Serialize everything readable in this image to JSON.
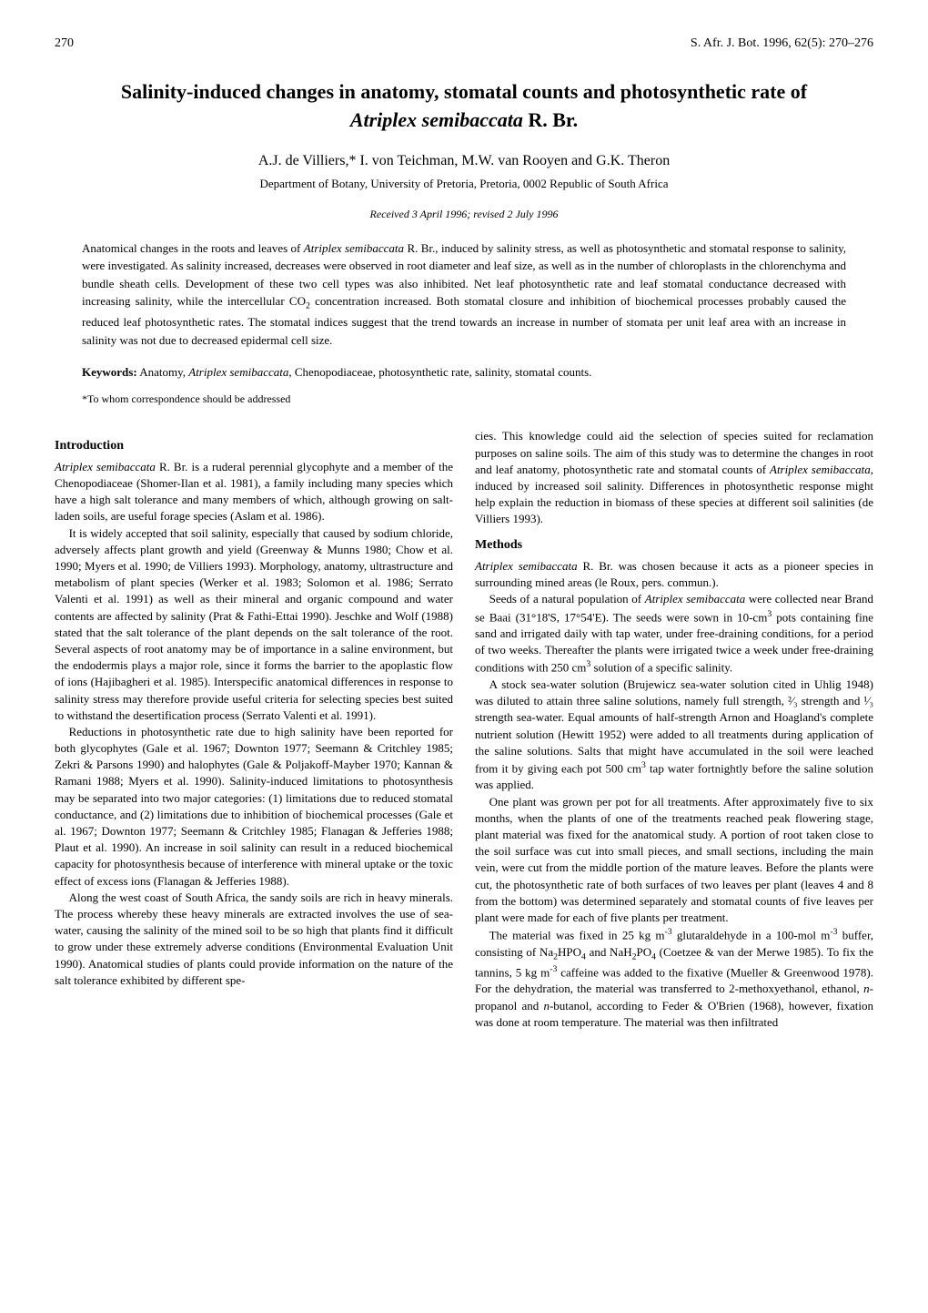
{
  "header": {
    "page_number": "270",
    "journal_ref": "S. Afr. J. Bot. 1996, 62(5): 270–276"
  },
  "title_line1": "Salinity-induced changes in anatomy, stomatal counts and photosynthetic rate of",
  "title_line2_prefix": "",
  "title_species": "Atriplex semibaccata",
  "title_line2_suffix": " R. Br.",
  "authors": "A.J. de Villiers,* I. von Teichman, M.W. van Rooyen and G.K. Theron",
  "affiliation": "Department of Botany, University of Pretoria, Pretoria, 0002 Republic of South Africa",
  "received": "Received 3 April 1996; revised 2 July 1996",
  "abstract": {
    "text_1": "Anatomical changes in the roots and leaves of ",
    "species": "Atriplex semibaccata",
    "text_2": " R. Br., induced by salinity stress, as well as photosynthetic and stomatal response to salinity, were investigated. As salinity increased, decreases were observed in root diameter and leaf size, as well as in the number of chloroplasts in the chlorenchyma and bundle sheath cells. Development of these two cell types was also inhibited. Net leaf photosynthetic rate and leaf stomatal conductance decreased with increasing salinity, while the intercellular CO",
    "sub": "2",
    "text_3": " concentration increased. Both stomatal closure and inhibition of biochemical processes probably caused the reduced leaf photosynthetic rates. The stomatal indices suggest that the trend towards an increase in number of stomata per unit leaf area with an increase in salinity was not due to decreased epidermal cell size."
  },
  "keywords": {
    "label": "Keywords:",
    "text_1": " Anatomy, ",
    "species": "Atriplex semibaccata",
    "text_2": ", Chenopodiaceae, photosynthetic rate, salinity, stomatal counts."
  },
  "correspondence": "*To whom correspondence should be addressed",
  "sections": {
    "introduction": {
      "heading": "Introduction",
      "p1_species": "Atriplex semibaccata",
      "p1_text": " R. Br. is a ruderal perennial glycophyte and a member of the Chenopodiaceae (Shomer-Ilan et al. 1981), a family including many species which have a high salt tolerance and many members of which, although growing on salt-laden soils, are useful forage species (Aslam et al. 1986).",
      "p2": "It is widely accepted that soil salinity, especially that caused by sodium chloride, adversely affects plant growth and yield (Greenway & Munns 1980; Chow et al. 1990; Myers et al. 1990; de Villiers 1993). Morphology, anatomy, ultrastructure and metabolism of plant species (Werker et al. 1983; Solomon et al. 1986; Serrato Valenti et al. 1991) as well as their mineral and organic compound and water contents are affected by salinity (Prat & Fathi-Ettai 1990). Jeschke and Wolf (1988) stated that the salt tolerance of the plant depends on the salt tolerance of the root. Several aspects of root anatomy may be of importance in a saline environment, but the endodermis plays a major role, since it forms the barrier to the apoplastic flow of ions (Hajibagheri et al. 1985). Interspecific anatomical differences in response to salinity stress may therefore provide useful criteria for selecting species best suited to withstand the desertification process (Serrato Valenti et al. 1991).",
      "p3": "Reductions in photosynthetic rate due to high salinity have been reported for both glycophytes (Gale et al. 1967; Downton 1977; Seemann & Critchley 1985; Zekri & Parsons 1990) and halophytes (Gale & Poljakoff-Mayber 1970; Kannan & Ramani 1988; Myers et al. 1990). Salinity-induced limitations to photosynthesis may be separated into two major categories: (1) limitations due to reduced stomatal conductance, and (2) limitations due to inhibition of biochemical processes (Gale et al. 1967; Downton 1977; Seemann & Critchley 1985; Flanagan & Jefferies 1988; Plaut et al. 1990). An increase in soil salinity can result in a reduced biochemical capacity for photosynthesis because of interference with mineral uptake or the toxic effect of excess ions (Flanagan & Jefferies 1988).",
      "p4": "Along the west coast of South Africa, the sandy soils are rich in heavy minerals. The process whereby these heavy minerals are extracted involves the use of sea-water, causing the salinity of the mined soil to be so high that plants find it difficult to grow under these extremely adverse conditions (Environmental Evaluation Unit 1990). Anatomical studies of plants could provide information on the nature of the salt tolerance exhibited by different spe-",
      "p4_cont": "cies. This knowledge could aid the selection of species suited for reclamation purposes on saline soils. The aim of this study was to determine the changes in root and leaf anatomy, photosynthetic rate and stomatal counts of ",
      "p4_species": "Atriplex semibaccata",
      "p4_cont2": ", induced by increased soil salinity. Differences in photosynthetic response might help explain the reduction in biomass of these species at different soil salinities (de Villiers 1993)."
    },
    "methods": {
      "heading": "Methods",
      "p1_species": "Atriplex semibaccata",
      "p1_text": " R. Br. was chosen because it acts as a pioneer species in surrounding mined areas (le Roux, pers. commun.).",
      "p2_1": "Seeds of a natural population of ",
      "p2_species": "Atriplex semibaccata",
      "p2_2": " were collected near Brand se Baai (31°18'S, 17°54'E). The seeds were sown in 10-cm",
      "p2_sup": "3",
      "p2_3": " pots containing fine sand and irrigated daily with tap water, under free-draining conditions, for a period of two weeks. Thereafter the plants were irrigated twice a week under free-draining conditions with 250 cm",
      "p2_sup2": "3",
      "p2_4": " solution of a specific salinity.",
      "p3_1": "A stock sea-water solution (Brujewicz sea-water solution cited in Uhlig 1948) was diluted to attain three saline solutions, namely full strength, ",
      "p3_frac1": "²⁄₃",
      "p3_2": " strength and ",
      "p3_frac2": "¹⁄₃",
      "p3_3": " strength sea-water. Equal amounts of half-strength Arnon and Hoagland's complete nutrient solution (Hewitt 1952) were added to all treatments during application of the saline solutions. Salts that might have accumulated in the soil were leached from it by giving each pot 500 cm",
      "p3_sup": "3",
      "p3_4": " tap water fortnightly before the saline solution was applied.",
      "p4": "One plant was grown per pot for all treatments. After approximately five to six months, when the plants of one of the treatments reached peak flowering stage, plant material was fixed for the anatomical study. A portion of root taken close to the soil surface was cut into small pieces, and small sections, including the main vein, were cut from the middle portion of the mature leaves. Before the plants were cut, the photosynthetic rate of both surfaces of two leaves per plant (leaves 4 and 8 from the bottom) was determined separately and stomatal counts of five leaves per plant were made for each of five plants per treatment.",
      "p5_1": "The material was fixed in 25 kg m",
      "p5_sup1": "-3",
      "p5_2": " glutaraldehyde in a 100-mol m",
      "p5_sup2": "-3",
      "p5_3": " buffer, consisting of Na",
      "p5_sub1": "2",
      "p5_4": "HPO",
      "p5_sub2": "4",
      "p5_5": " and NaH",
      "p5_sub3": "2",
      "p5_6": "PO",
      "p5_sub4": "4",
      "p5_7": " (Coetzee & van der Merwe 1985). To fix the tannins, 5 kg m",
      "p5_sup3": "-3",
      "p5_8": " caffeine was added to the fixative (Mueller & Greenwood 1978). For the dehydration, the material was transferred to 2-methoxyethanol, ethanol, ",
      "p5_n1": "n",
      "p5_9": "-propanol and ",
      "p5_n2": "n",
      "p5_10": "-butanol, according to Feder & O'Brien (1968), however, fixation was done at room temperature. The material was then infiltrated"
    }
  }
}
